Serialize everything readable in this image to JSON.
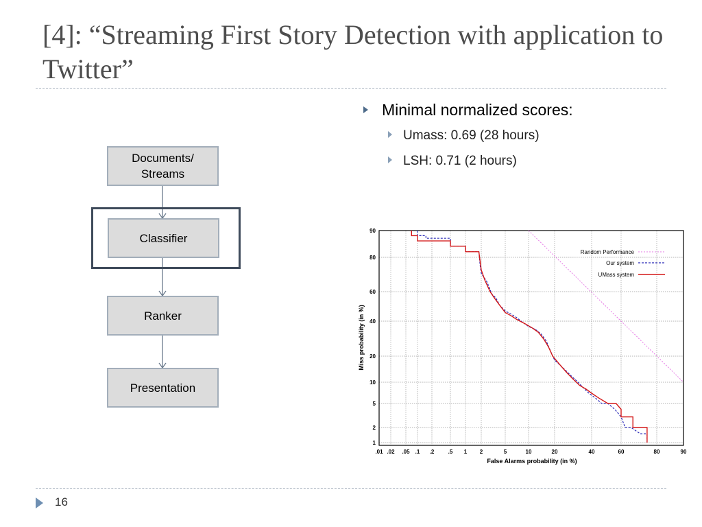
{
  "slide": {
    "title": "[4]: “Streaming First Story Detection with application to Twitter”",
    "page_number": "16"
  },
  "bullets": {
    "main": "Minimal normalized scores:",
    "sub": [
      "Umass: 0.69 (28 hours)",
      "LSH: 0.71 (2 hours)"
    ]
  },
  "flowchart": {
    "boxes": [
      "Documents/\nStreams",
      "Classifier",
      "Ranker",
      "Presentation"
    ],
    "highlighted": "Classifier"
  },
  "colors": {
    "title": "#4d4d4d",
    "box_fill": "#dcdcdc",
    "box_border": "#a3aeba",
    "highlight_border": "#3f4b5b",
    "random": "#e67ae6",
    "ours": "#2b2bb8",
    "umass": "#d41818"
  },
  "chart_data": {
    "type": "line",
    "title": "",
    "xlabel": "False Alarms probability (in %)",
    "ylabel": "Miss probability (in %)",
    "x_ticks": [
      ".01",
      ".02",
      ".05",
      ".1",
      ".2",
      ".5",
      "1",
      "2",
      "5",
      "10",
      "20",
      "40",
      "60",
      "80",
      "90"
    ],
    "y_ticks": [
      "1",
      "2",
      "5",
      "10",
      "20",
      "40",
      "60",
      "80",
      "90"
    ],
    "legend_position": "top-right",
    "series": [
      {
        "name": "Random Performance",
        "style": "dotted",
        "x": [
          10,
          90
        ],
        "y": [
          90,
          10
        ]
      },
      {
        "name": "Our system",
        "style": "dashed",
        "x": [
          0.1,
          0.1,
          0.15,
          0.15,
          0.5,
          0.5,
          1,
          1,
          1.8,
          1.9,
          2,
          2.5,
          3,
          3.5,
          4,
          5,
          6,
          7,
          8,
          10,
          12,
          14,
          16,
          18,
          20,
          23,
          27,
          31,
          35,
          38,
          42,
          46,
          50,
          55,
          60,
          62,
          65,
          70,
          74,
          74
        ],
        "y": [
          90,
          88,
          88,
          87,
          87,
          84,
          84,
          82,
          82,
          75,
          70,
          65,
          58,
          55,
          50,
          46,
          44,
          42,
          40,
          36,
          34,
          31,
          27,
          22,
          18,
          15,
          12,
          10,
          8,
          7,
          6,
          5,
          5,
          4,
          3,
          2,
          2,
          1.5,
          1.5,
          1
        ]
      },
      {
        "name": "UMass system",
        "style": "solid",
        "x": [
          0.07,
          0.07,
          0.1,
          0.1,
          0.5,
          0.5,
          1,
          1,
          1.8,
          2,
          2.3,
          2.8,
          3.3,
          4,
          5,
          6,
          7,
          9,
          11,
          13,
          15,
          17,
          19,
          22,
          25,
          28,
          32,
          36,
          40,
          44,
          50,
          56,
          60,
          60,
          66,
          66,
          74,
          74
        ],
        "y": [
          90,
          88,
          88,
          86,
          86,
          84,
          84,
          82,
          82,
          72,
          66,
          60,
          55,
          50,
          45,
          43,
          41,
          38,
          35,
          32,
          28,
          24,
          20,
          16,
          13,
          11,
          9,
          8,
          7,
          6,
          5,
          5,
          4,
          3,
          3,
          2,
          2,
          1
        ]
      }
    ]
  }
}
